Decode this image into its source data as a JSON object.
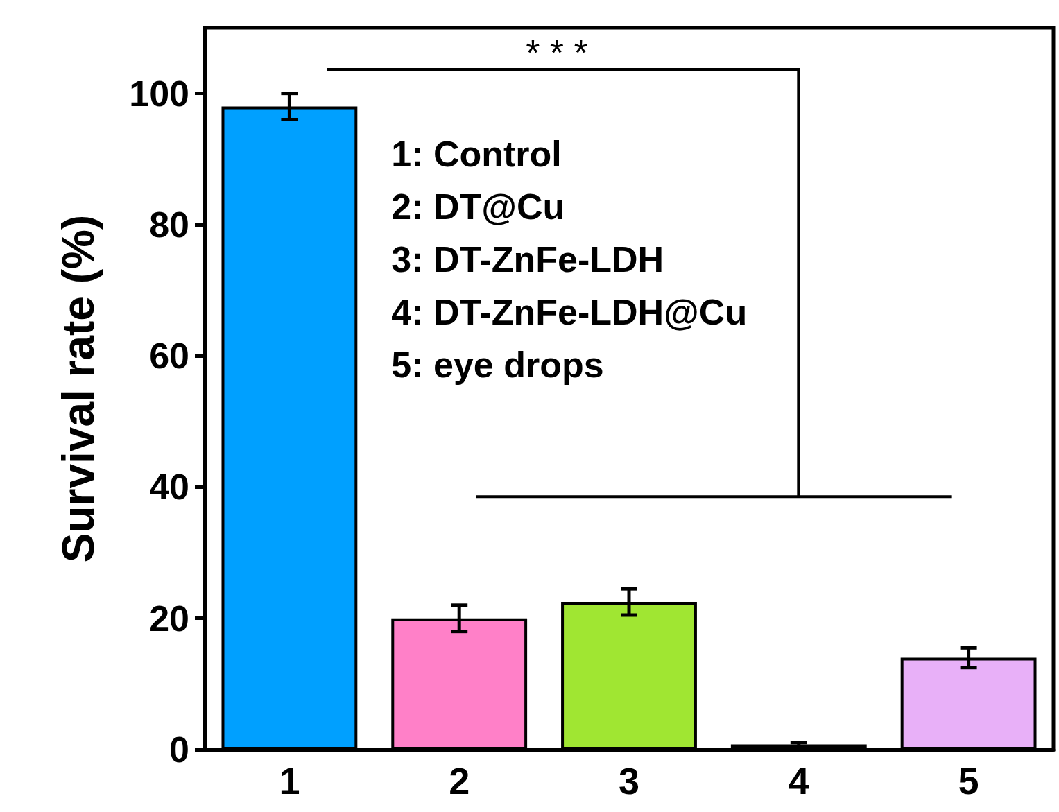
{
  "chart_data": {
    "type": "bar",
    "ylabel": "Survival rate (%)",
    "categories": [
      "1",
      "2",
      "3",
      "4",
      "5"
    ],
    "values": [
      98,
      20,
      22.5,
      0.8,
      14
    ],
    "colors": [
      "#00a0ff",
      "#ff80c8",
      "#a0e632",
      "#e02020",
      "#e8b0f8"
    ],
    "errors": [
      2,
      2,
      2,
      0.3,
      1.5
    ],
    "ylim": [
      0,
      110
    ],
    "yticks": [
      0,
      20,
      40,
      60,
      80,
      100
    ],
    "grid": false,
    "annotations": [
      "* * *",
      "1: Control",
      "2: DT@Cu",
      "3: DT-ZnFe-LDH",
      "4: DT-ZnFe-LDH@Cu",
      "5: eye drops"
    ]
  }
}
